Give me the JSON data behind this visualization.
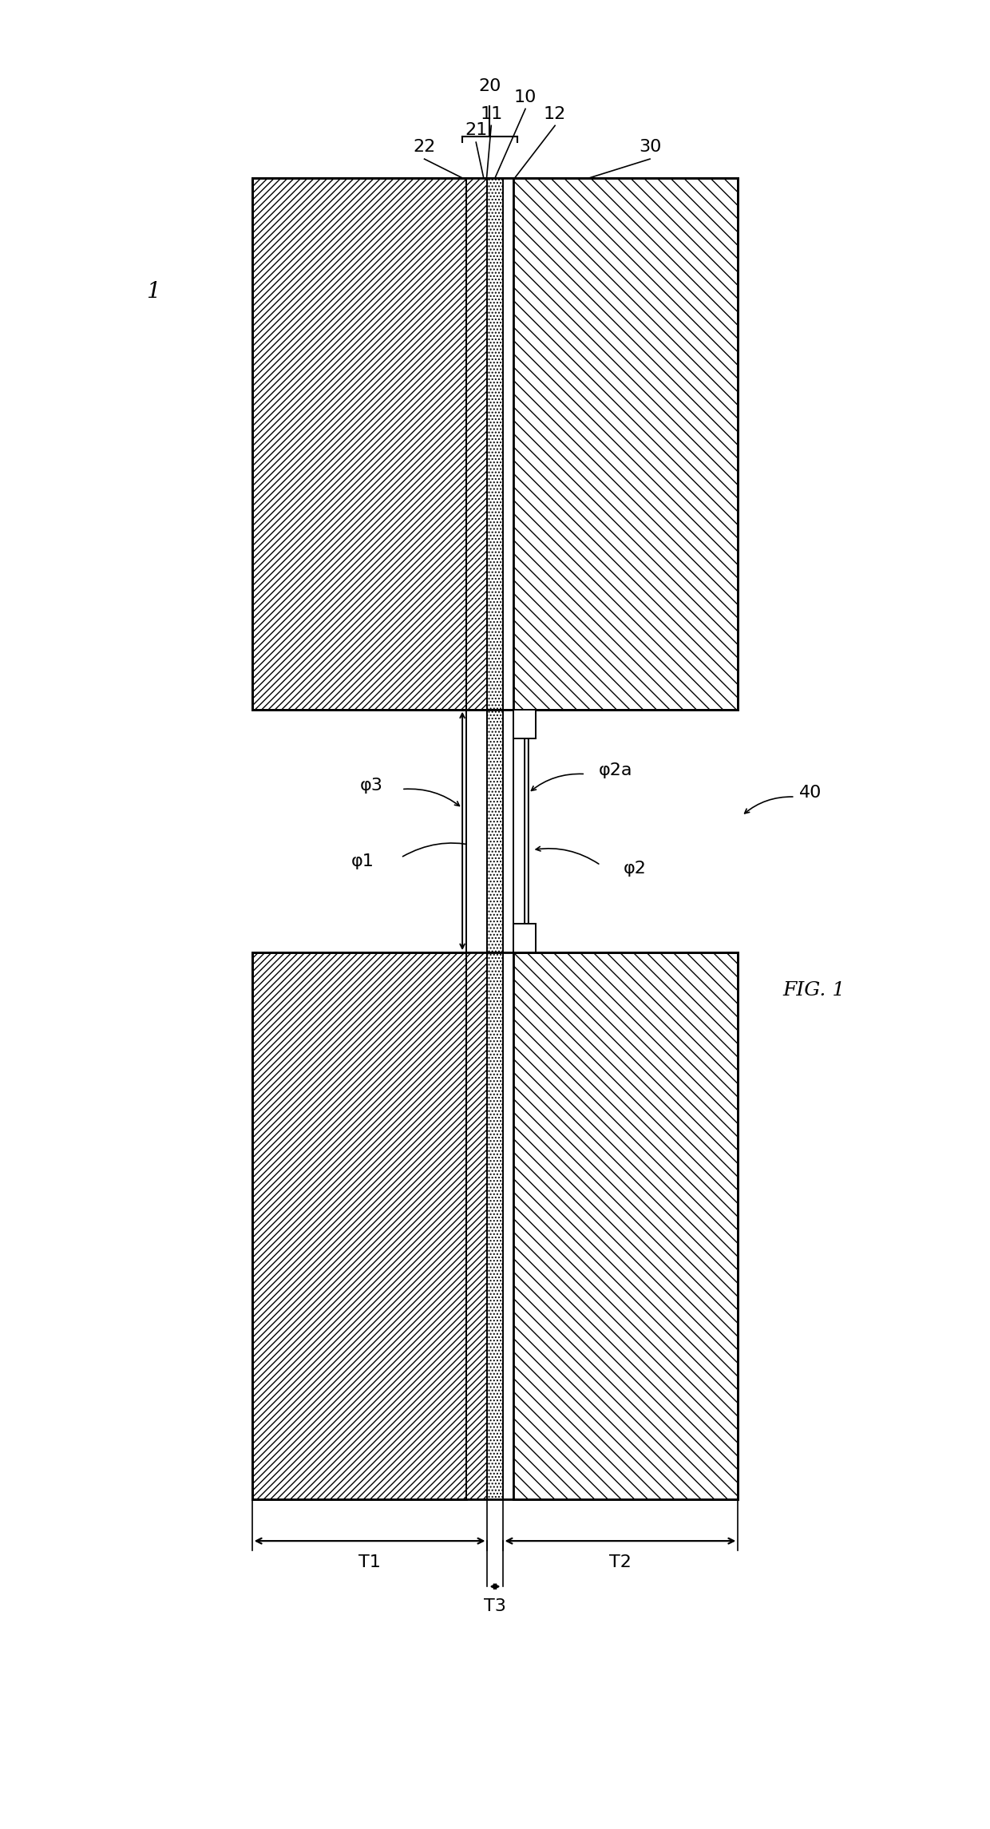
{
  "fig_width": 12.4,
  "fig_height": 22.91,
  "bg_color": "#ffffff",
  "line_color": "#000000",
  "label_1": "1",
  "label_10": "10",
  "label_11": "11",
  "label_12": "12",
  "label_20": "20",
  "label_21": "21",
  "label_22": "22",
  "label_30": "30",
  "label_40": "40",
  "label_phi1": "φ1",
  "label_phi2": "φ2",
  "label_phi2a": "φ2a",
  "label_phi3": "φ3",
  "label_T1": "T1",
  "label_T2": "T2",
  "label_T3": "T3",
  "fig_label": "FIG. 1",
  "font_size_labels": 16,
  "font_size_fig": 18
}
